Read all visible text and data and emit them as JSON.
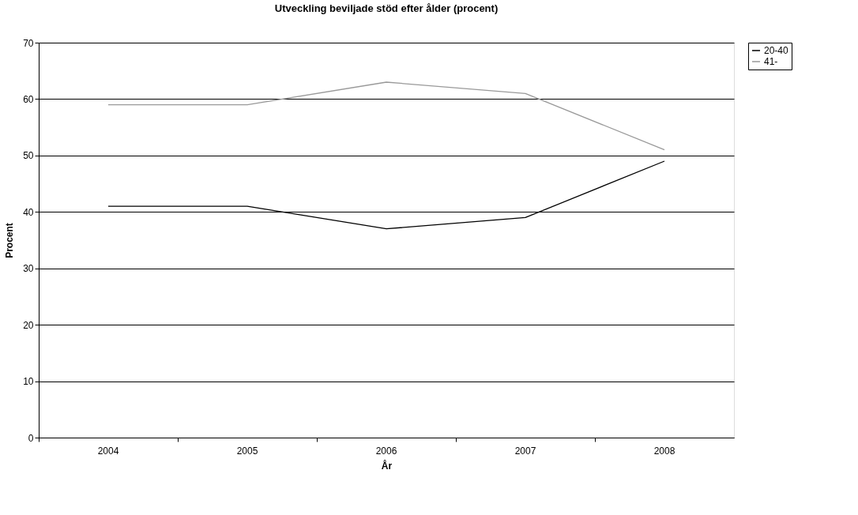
{
  "chart_data": {
    "type": "line",
    "title": "Utveckling beviljade stöd efter ålder (procent)",
    "xlabel": "År",
    "ylabel": "Procent",
    "categories": [
      "2004",
      "2005",
      "2006",
      "2007",
      "2008"
    ],
    "series": [
      {
        "name": "20-40",
        "color": "#000000",
        "values": [
          41,
          41,
          37,
          39,
          49
        ]
      },
      {
        "name": "41-",
        "color": "#999999",
        "values": [
          59,
          59,
          63,
          61,
          51
        ]
      }
    ],
    "ylim": [
      0,
      70
    ],
    "yticks": [
      0,
      10,
      20,
      30,
      40,
      50,
      60,
      70
    ],
    "grid": "y",
    "legend": "right",
    "marker": "none",
    "line_style": "solid"
  }
}
